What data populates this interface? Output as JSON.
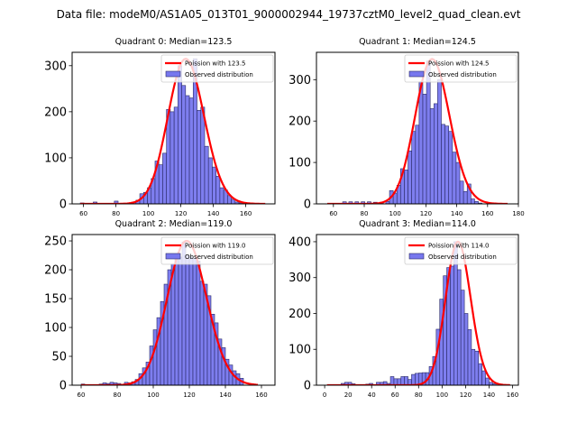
{
  "suptitle": "Data file: modeM0/AS1A05_013T01_9000002944_19737cztM0_level2_quad_clean.evt",
  "colors": {
    "bar_fill": "#7777ee",
    "bar_edge": "#2a2a66",
    "poisson_line": "#ff0000"
  },
  "chart_data": [
    {
      "type": "bar",
      "title": "Quadrant 0: Median=123.5",
      "legend": [
        "Poission with 123.5",
        "Observed distribution"
      ],
      "legend_position": "top-right",
      "xlim": [
        53,
        178
      ],
      "ylim": [
        0,
        329
      ],
      "xticks": [
        60,
        80,
        100,
        120,
        140,
        160
      ],
      "yticks": [
        0,
        100,
        200,
        300
      ],
      "bin_width": 2.35,
      "bins_left": [
        58,
        66,
        79,
        90,
        92.35,
        94.7,
        97.05,
        99.4,
        101.75,
        104.1,
        106.45,
        108.8,
        111.15,
        113.5,
        115.85,
        118.2,
        120.55,
        122.9,
        125.25,
        127.6,
        129.95,
        132.3,
        134.65,
        137.0,
        139.35,
        141.7,
        144.05,
        146.4,
        148.75,
        151.1,
        153.45,
        155.8
      ],
      "values": [
        2,
        4,
        6,
        4,
        8,
        22,
        25,
        35,
        55,
        93,
        85,
        110,
        205,
        200,
        210,
        300,
        257,
        235,
        230,
        315,
        203,
        210,
        125,
        100,
        80,
        60,
        35,
        30,
        18,
        10,
        4,
        2
      ],
      "poisson_mu": 123.5,
      "poisson_peak": 315,
      "poisson_range": [
        58,
        172
      ]
    },
    {
      "type": "bar",
      "title": "Quadrant 1: Median=124.5",
      "legend": [
        "Poission with 124.5",
        "Observed distribution"
      ],
      "legend_position": "top-right",
      "xlim": [
        49,
        180
      ],
      "ylim": [
        0,
        366
      ],
      "xticks": [
        60,
        80,
        100,
        120,
        140,
        160,
        180
      ],
      "yticks": [
        0,
        100,
        200,
        300
      ],
      "bin_width": 2.4,
      "bins_left": [
        66,
        70,
        74,
        78,
        82,
        86,
        90,
        94.0,
        96.4,
        98.8,
        101.2,
        103.6,
        106.0,
        108.4,
        110.8,
        113.2,
        115.6,
        118.0,
        120.4,
        122.8,
        125.2,
        127.6,
        130.0,
        132.4,
        134.8,
        137.2,
        139.6,
        142.0,
        144.4,
        146.8,
        149.2,
        151.6,
        154.0
      ],
      "values": [
        5,
        5,
        5,
        5,
        5,
        4,
        4,
        6,
        32,
        26,
        45,
        85,
        82,
        128,
        175,
        190,
        295,
        265,
        345,
        230,
        242,
        300,
        192,
        188,
        175,
        125,
        100,
        55,
        30,
        48,
        12,
        6,
        2
      ],
      "poisson_mu": 124.5,
      "poisson_peak": 350,
      "poisson_range": [
        56,
        173
      ]
    },
    {
      "type": "bar",
      "title": "Quadrant 2: Median=119.0",
      "legend": [
        "Poission with 119.0",
        "Observed distribution"
      ],
      "legend_position": "top-right",
      "xlim": [
        55,
        167.5
      ],
      "ylim": [
        0,
        261
      ],
      "xticks": [
        60,
        80,
        100,
        120,
        140,
        160
      ],
      "yticks": [
        0,
        50,
        100,
        150,
        200,
        250
      ],
      "bin_width": 2.0,
      "bins_left": [
        60,
        70,
        72,
        74,
        76,
        78,
        80,
        84,
        86,
        88,
        90,
        92,
        94,
        96,
        98,
        100,
        102,
        104,
        106,
        108,
        110,
        112,
        114,
        116,
        118,
        120,
        122,
        124,
        126,
        128,
        130,
        132,
        134,
        136,
        138,
        140,
        142,
        144,
        146,
        148
      ],
      "values": [
        2,
        2,
        4,
        3,
        5,
        4,
        3,
        5,
        4,
        6,
        10,
        20,
        30,
        40,
        68,
        96,
        117,
        145,
        175,
        200,
        210,
        222,
        222,
        248,
        225,
        222,
        220,
        215,
        180,
        175,
        155,
        123,
        108,
        80,
        65,
        45,
        35,
        25,
        20,
        12
      ],
      "poisson_mu": 119.0,
      "poisson_peak": 250,
      "poisson_range": [
        60,
        158
      ]
    },
    {
      "type": "bar",
      "title": "Quadrant 3: Median=114.0",
      "legend": [
        "Poission with 114.0",
        "Observed distribution"
      ],
      "legend_position": "top-right",
      "xlim": [
        -7,
        165
      ],
      "ylim": [
        0,
        420
      ],
      "xticks": [
        0,
        20,
        40,
        60,
        80,
        100,
        120,
        140,
        160
      ],
      "yticks": [
        0,
        100,
        200,
        300,
        400
      ],
      "bin_width": 3.0,
      "bins_left": [
        14,
        17,
        20,
        23,
        35,
        38,
        44,
        47,
        50,
        53,
        56,
        59,
        62,
        65,
        68,
        71,
        74,
        77,
        80,
        83,
        86,
        89,
        92,
        95,
        98,
        101,
        104,
        107,
        110,
        113,
        116,
        119,
        122,
        125,
        128,
        131,
        134,
        137,
        140,
        143
      ],
      "values": [
        5,
        8,
        8,
        4,
        3,
        5,
        8,
        8,
        10,
        5,
        24,
        18,
        18,
        24,
        24,
        16,
        30,
        33,
        34,
        35,
        35,
        52,
        80,
        156,
        240,
        305,
        328,
        332,
        400,
        322,
        265,
        200,
        155,
        100,
        95,
        60,
        40,
        20,
        8,
        4
      ],
      "poisson_mu": 114.0,
      "poisson_peak": 400,
      "poisson_range": [
        2,
        158
      ]
    }
  ]
}
